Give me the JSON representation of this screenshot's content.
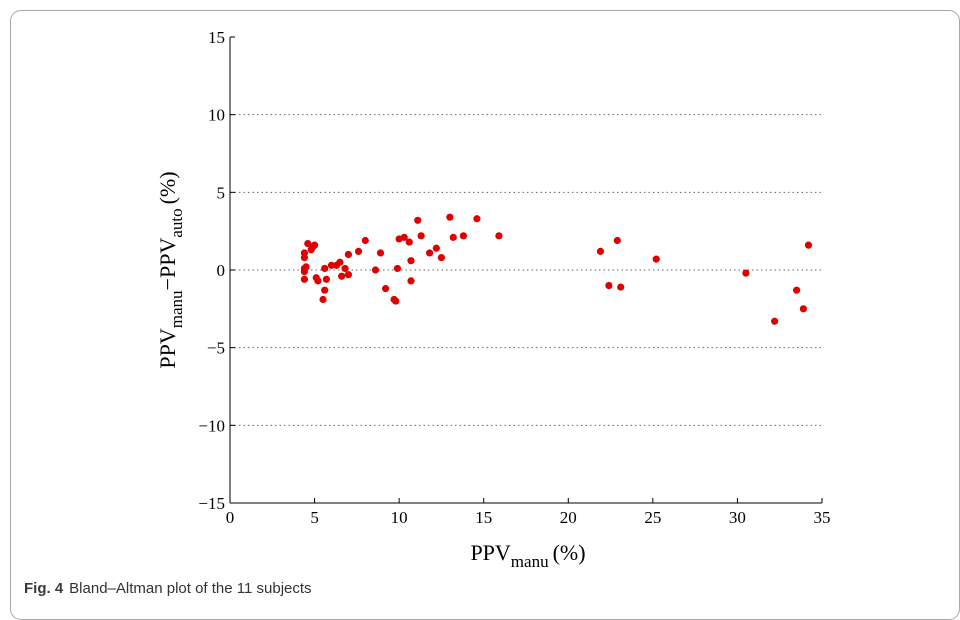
{
  "chart_data": {
    "type": "scatter",
    "xlim": [
      0,
      35
    ],
    "ylim": [
      -15,
      15
    ],
    "x_ticks": [
      0,
      5,
      10,
      15,
      20,
      25,
      30,
      35
    ],
    "y_ticks": [
      -15,
      -10,
      -5,
      0,
      5,
      10,
      15
    ],
    "y_gridlines": [
      -10,
      -5,
      0,
      5,
      10
    ],
    "grid": "horizontal dotted",
    "xlabel": {
      "main": "PPV",
      "sub": "manu",
      "suffix": "(%)"
    },
    "ylabel": {
      "main1": "PPV",
      "sub1": "manu",
      "sep": "−PPV",
      "sub2": "auto",
      "suffix": "(%)"
    },
    "marker_color": "#e00000",
    "points": [
      [
        4.4,
        1.1
      ],
      [
        4.4,
        0.8
      ],
      [
        4.4,
        0.1
      ],
      [
        4.4,
        -0.1
      ],
      [
        4.4,
        -0.6
      ],
      [
        4.5,
        0.2
      ],
      [
        4.6,
        1.7
      ],
      [
        4.8,
        1.3
      ],
      [
        4.9,
        1.5
      ],
      [
        5.0,
        1.6
      ],
      [
        5.1,
        -0.5
      ],
      [
        5.2,
        -0.7
      ],
      [
        5.5,
        -1.9
      ],
      [
        5.6,
        0.1
      ],
      [
        5.6,
        -1.3
      ],
      [
        5.7,
        -0.6
      ],
      [
        6.0,
        0.3
      ],
      [
        6.3,
        0.3
      ],
      [
        6.5,
        0.5
      ],
      [
        6.6,
        -0.4
      ],
      [
        6.8,
        0.1
      ],
      [
        7.0,
        1.0
      ],
      [
        7.0,
        -0.3
      ],
      [
        7.6,
        1.2
      ],
      [
        8.0,
        1.9
      ],
      [
        8.6,
        0.0
      ],
      [
        8.9,
        1.1
      ],
      [
        9.2,
        -1.2
      ],
      [
        9.7,
        -1.9
      ],
      [
        9.8,
        -2.0
      ],
      [
        9.9,
        0.1
      ],
      [
        10.0,
        2.0
      ],
      [
        10.3,
        2.1
      ],
      [
        10.6,
        1.8
      ],
      [
        10.7,
        0.6
      ],
      [
        10.7,
        -0.7
      ],
      [
        11.1,
        3.2
      ],
      [
        11.3,
        2.2
      ],
      [
        11.8,
        1.1
      ],
      [
        12.2,
        1.4
      ],
      [
        12.5,
        0.8
      ],
      [
        13.0,
        3.4
      ],
      [
        13.2,
        2.1
      ],
      [
        13.8,
        2.2
      ],
      [
        14.6,
        3.3
      ],
      [
        15.9,
        2.2
      ],
      [
        21.9,
        1.2
      ],
      [
        22.4,
        -1.0
      ],
      [
        22.9,
        1.9
      ],
      [
        23.1,
        -1.1
      ],
      [
        25.2,
        0.7
      ],
      [
        30.5,
        -0.2
      ],
      [
        32.2,
        -3.3
      ],
      [
        33.5,
        -1.3
      ],
      [
        33.9,
        -2.5
      ],
      [
        34.2,
        1.6
      ]
    ]
  },
  "caption": {
    "label": "Fig. 4",
    "text": "Bland–Altman plot of the 11 subjects"
  }
}
